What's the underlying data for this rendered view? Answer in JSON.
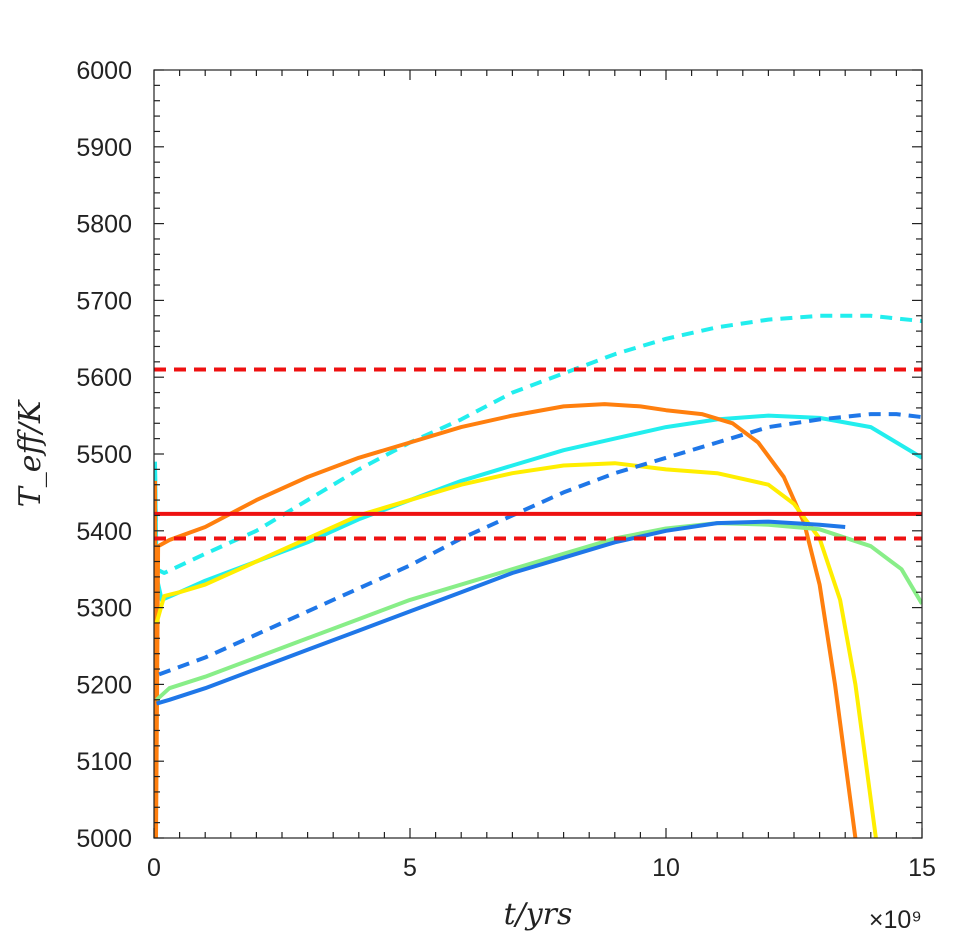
{
  "chart_data": {
    "type": "line",
    "xlabel": "t/yrs",
    "ylabel": "T_eff/K",
    "x_multiplier": "×10⁹",
    "xlim": [
      0,
      15
    ],
    "ylim": [
      5000,
      6000
    ],
    "xticks": [
      0,
      5,
      10,
      15
    ],
    "yticks": [
      5000,
      5100,
      5200,
      5300,
      5400,
      5500,
      5600,
      5700,
      5800,
      5900,
      6000
    ],
    "grid": false,
    "reference_lines": [
      {
        "y": 5610,
        "color": "#ee1111",
        "dash": "dashed"
      },
      {
        "y": 5422,
        "color": "#ee1111",
        "dash": "solid"
      },
      {
        "y": 5390,
        "color": "#ee1111",
        "dash": "dashed"
      }
    ],
    "series": [
      {
        "color": "#22eeee",
        "dash": "dashed",
        "points": [
          [
            0.02,
            5480
          ],
          [
            0.05,
            5350
          ],
          [
            0.2,
            5345
          ],
          [
            1,
            5370
          ],
          [
            2,
            5400
          ],
          [
            3,
            5440
          ],
          [
            4,
            5480
          ],
          [
            5,
            5515
          ],
          [
            6,
            5545
          ],
          [
            7,
            5580
          ],
          [
            8,
            5605
          ],
          [
            9,
            5630
          ],
          [
            10,
            5650
          ],
          [
            11,
            5665
          ],
          [
            12,
            5675
          ],
          [
            13,
            5680
          ],
          [
            14,
            5680
          ],
          [
            15,
            5673
          ]
        ]
      },
      {
        "color": "#22eeee",
        "dash": "solid",
        "points": [
          [
            0.02,
            5490
          ],
          [
            0.05,
            5340
          ],
          [
            0.15,
            5310
          ],
          [
            0.5,
            5320
          ],
          [
            1,
            5335
          ],
          [
            2,
            5360
          ],
          [
            3,
            5385
          ],
          [
            4,
            5415
          ],
          [
            5,
            5440
          ],
          [
            6,
            5465
          ],
          [
            7,
            5485
          ],
          [
            8,
            5505
          ],
          [
            9,
            5520
          ],
          [
            10,
            5535
          ],
          [
            11,
            5545
          ],
          [
            12,
            5550
          ],
          [
            13,
            5547
          ],
          [
            14,
            5535
          ],
          [
            15,
            5495
          ]
        ]
      },
      {
        "color": "#ff7f0e",
        "dash": "solid",
        "points": [
          [
            0.02,
            5465
          ],
          [
            0.04,
            5000
          ],
          [
            0.08,
            5380
          ],
          [
            0.3,
            5388
          ],
          [
            1,
            5405
          ],
          [
            2,
            5440
          ],
          [
            3,
            5470
          ],
          [
            4,
            5495
          ],
          [
            5,
            5515
          ],
          [
            6,
            5535
          ],
          [
            7,
            5550
          ],
          [
            8,
            5562
          ],
          [
            8.8,
            5565
          ],
          [
            9.5,
            5562
          ],
          [
            10,
            5557
          ],
          [
            10.7,
            5552
          ],
          [
            11.3,
            5540
          ],
          [
            11.8,
            5515
          ],
          [
            12.3,
            5470
          ],
          [
            12.7,
            5410
          ],
          [
            13,
            5330
          ],
          [
            13.3,
            5200
          ],
          [
            13.7,
            5000
          ]
        ]
      },
      {
        "color": "#ffee00",
        "dash": "solid",
        "points": [
          [
            0.05,
            5280
          ],
          [
            0.2,
            5315
          ],
          [
            0.5,
            5320
          ],
          [
            1,
            5330
          ],
          [
            2,
            5360
          ],
          [
            3,
            5390
          ],
          [
            4,
            5420
          ],
          [
            5,
            5440
          ],
          [
            6,
            5460
          ],
          [
            7,
            5475
          ],
          [
            8,
            5485
          ],
          [
            9,
            5488
          ],
          [
            10,
            5480
          ],
          [
            11,
            5475
          ],
          [
            12,
            5460
          ],
          [
            12.5,
            5435
          ],
          [
            13,
            5390
          ],
          [
            13.4,
            5310
          ],
          [
            13.7,
            5200
          ],
          [
            13.9,
            5100
          ],
          [
            14.1,
            5000
          ]
        ]
      },
      {
        "color": "#1f77e8",
        "dash": "dashed",
        "points": [
          [
            0.1,
            5213
          ],
          [
            1,
            5235
          ],
          [
            2,
            5265
          ],
          [
            3,
            5295
          ],
          [
            4,
            5325
          ],
          [
            5,
            5355
          ],
          [
            6,
            5390
          ],
          [
            7,
            5420
          ],
          [
            8,
            5450
          ],
          [
            9,
            5475
          ],
          [
            10,
            5495
          ],
          [
            11,
            5515
          ],
          [
            12,
            5535
          ],
          [
            13,
            5545
          ],
          [
            14,
            5552
          ],
          [
            14.5,
            5552
          ],
          [
            15,
            5548
          ]
        ]
      },
      {
        "color": "#88ee88",
        "dash": "solid",
        "points": [
          [
            0.05,
            5180
          ],
          [
            0.3,
            5195
          ],
          [
            1,
            5210
          ],
          [
            2,
            5235
          ],
          [
            3,
            5260
          ],
          [
            4,
            5285
          ],
          [
            5,
            5310
          ],
          [
            6,
            5330
          ],
          [
            7,
            5350
          ],
          [
            8,
            5370
          ],
          [
            9,
            5390
          ],
          [
            10,
            5403
          ],
          [
            11,
            5410
          ],
          [
            12,
            5408
          ],
          [
            13,
            5402
          ],
          [
            14,
            5380
          ],
          [
            14.6,
            5350
          ],
          [
            15,
            5305
          ]
        ]
      },
      {
        "color": "#1f77e8",
        "dash": "solid",
        "points": [
          [
            0.05,
            5175
          ],
          [
            0.3,
            5180
          ],
          [
            1,
            5195
          ],
          [
            2,
            5220
          ],
          [
            3,
            5245
          ],
          [
            4,
            5270
          ],
          [
            5,
            5295
          ],
          [
            6,
            5320
          ],
          [
            7,
            5345
          ],
          [
            8,
            5365
          ],
          [
            9,
            5385
          ],
          [
            10,
            5400
          ],
          [
            11,
            5410
          ],
          [
            12,
            5412
          ],
          [
            13,
            5408
          ],
          [
            13.5,
            5405
          ]
        ]
      }
    ]
  }
}
